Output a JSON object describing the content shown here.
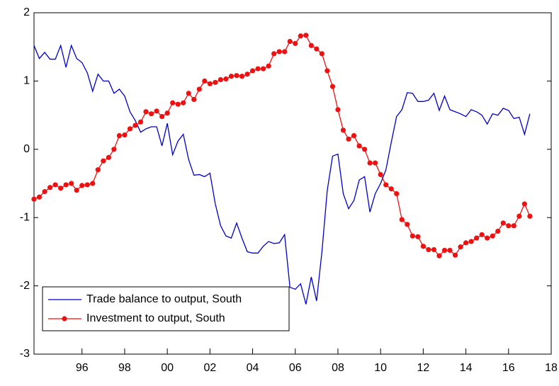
{
  "chart_data": {
    "type": "line",
    "x": [
      1993.75,
      1994,
      1994.25,
      1994.5,
      1994.75,
      1995,
      1995.25,
      1995.5,
      1995.75,
      1996,
      1996.25,
      1996.5,
      1996.75,
      1997,
      1997.25,
      1997.5,
      1997.75,
      1998,
      1998.25,
      1998.5,
      1998.75,
      1999,
      1999.25,
      1999.5,
      1999.75,
      2000,
      2000.25,
      2000.5,
      2000.75,
      2001,
      2001.25,
      2001.5,
      2001.75,
      2002,
      2002.25,
      2002.5,
      2002.75,
      2003,
      2003.25,
      2003.5,
      2003.75,
      2004,
      2004.25,
      2004.5,
      2004.75,
      2005,
      2005.25,
      2005.5,
      2005.75,
      2006,
      2006.25,
      2006.5,
      2006.75,
      2007,
      2007.25,
      2007.5,
      2007.75,
      2008,
      2008.25,
      2008.5,
      2008.75,
      2009,
      2009.25,
      2009.5,
      2009.75,
      2010,
      2010.25,
      2010.5,
      2010.75,
      2011,
      2011.25,
      2011.5,
      2011.75,
      2012,
      2012.25,
      2012.5,
      2012.75,
      2013,
      2013.25,
      2013.5,
      2013.75,
      2014,
      2014.25,
      2014.5,
      2014.75,
      2015,
      2015.25,
      2015.5,
      2015.75,
      2016,
      2016.25,
      2016.5,
      2016.75,
      2017
    ],
    "series": [
      {
        "name": "Trade balance to output, South",
        "color": "#0000cc",
        "marker": false,
        "values": [
          1.52,
          1.33,
          1.42,
          1.32,
          1.32,
          1.52,
          1.2,
          1.52,
          1.33,
          1.27,
          1.12,
          0.85,
          1.1,
          1.0,
          1.0,
          0.82,
          0.88,
          0.78,
          0.55,
          0.42,
          0.25,
          0.3,
          0.33,
          0.33,
          0.05,
          0.38,
          -0.08,
          0.12,
          0.22,
          -0.15,
          -0.38,
          -0.37,
          -0.4,
          -0.35,
          -0.8,
          -1.12,
          -1.27,
          -1.3,
          -1.08,
          -1.3,
          -1.5,
          -1.52,
          -1.52,
          -1.42,
          -1.35,
          -1.38,
          -1.37,
          -1.25,
          -2.02,
          -2.05,
          -1.97,
          -2.27,
          -1.87,
          -2.22,
          -1.5,
          -0.6,
          -0.1,
          -0.07,
          -0.65,
          -0.87,
          -0.75,
          -0.45,
          -0.4,
          -0.92,
          -0.65,
          -0.5,
          -0.3,
          0.1,
          0.48,
          0.58,
          0.83,
          0.82,
          0.7,
          0.7,
          0.72,
          0.82,
          0.57,
          0.78,
          0.58,
          0.55,
          0.52,
          0.48,
          0.58,
          0.55,
          0.5,
          0.37,
          0.52,
          0.5,
          0.6,
          0.57,
          0.45,
          0.47,
          0.22,
          0.52
        ]
      },
      {
        "name": "Investment to output, South",
        "color": "#ee1111",
        "marker": true,
        "values": [
          -0.73,
          -0.7,
          -0.62,
          -0.56,
          -0.52,
          -0.57,
          -0.52,
          -0.5,
          -0.6,
          -0.53,
          -0.52,
          -0.5,
          -0.3,
          -0.17,
          -0.12,
          0.0,
          0.2,
          0.21,
          0.3,
          0.35,
          0.4,
          0.55,
          0.52,
          0.56,
          0.48,
          0.53,
          0.68,
          0.66,
          0.68,
          0.82,
          0.73,
          0.88,
          1.0,
          0.96,
          0.98,
          1.02,
          1.03,
          1.07,
          1.08,
          1.07,
          1.1,
          1.15,
          1.18,
          1.18,
          1.22,
          1.4,
          1.43,
          1.43,
          1.58,
          1.55,
          1.66,
          1.67,
          1.52,
          1.47,
          1.4,
          1.15,
          0.92,
          0.58,
          0.28,
          0.15,
          0.2,
          0.05,
          0.0,
          -0.2,
          -0.2,
          -0.37,
          -0.52,
          -0.58,
          -0.65,
          -1.03,
          -1.1,
          -1.27,
          -1.28,
          -1.42,
          -1.47,
          -1.47,
          -1.56,
          -1.48,
          -1.48,
          -1.55,
          -1.43,
          -1.37,
          -1.35,
          -1.3,
          -1.25,
          -1.3,
          -1.27,
          -1.2,
          -1.08,
          -1.12,
          -1.12,
          -0.98,
          -0.8,
          -0.98
        ]
      }
    ],
    "xlim": [
      1993.75,
      2018
    ],
    "xticks": [
      {
        "value": 1996,
        "label": "96"
      },
      {
        "value": 1998,
        "label": "98"
      },
      {
        "value": 2000,
        "label": "00"
      },
      {
        "value": 2002,
        "label": "02"
      },
      {
        "value": 2004,
        "label": "04"
      },
      {
        "value": 2006,
        "label": "06"
      },
      {
        "value": 2008,
        "label": "08"
      },
      {
        "value": 2010,
        "label": "10"
      },
      {
        "value": 2012,
        "label": "12"
      },
      {
        "value": 2014,
        "label": "14"
      },
      {
        "value": 2016,
        "label": "16"
      },
      {
        "value": 2018,
        "label": "18"
      }
    ],
    "ylim": [
      -3,
      2
    ],
    "yticks": [
      -3,
      -2,
      -1,
      0,
      1,
      2
    ],
    "legend": "bottom-left"
  }
}
